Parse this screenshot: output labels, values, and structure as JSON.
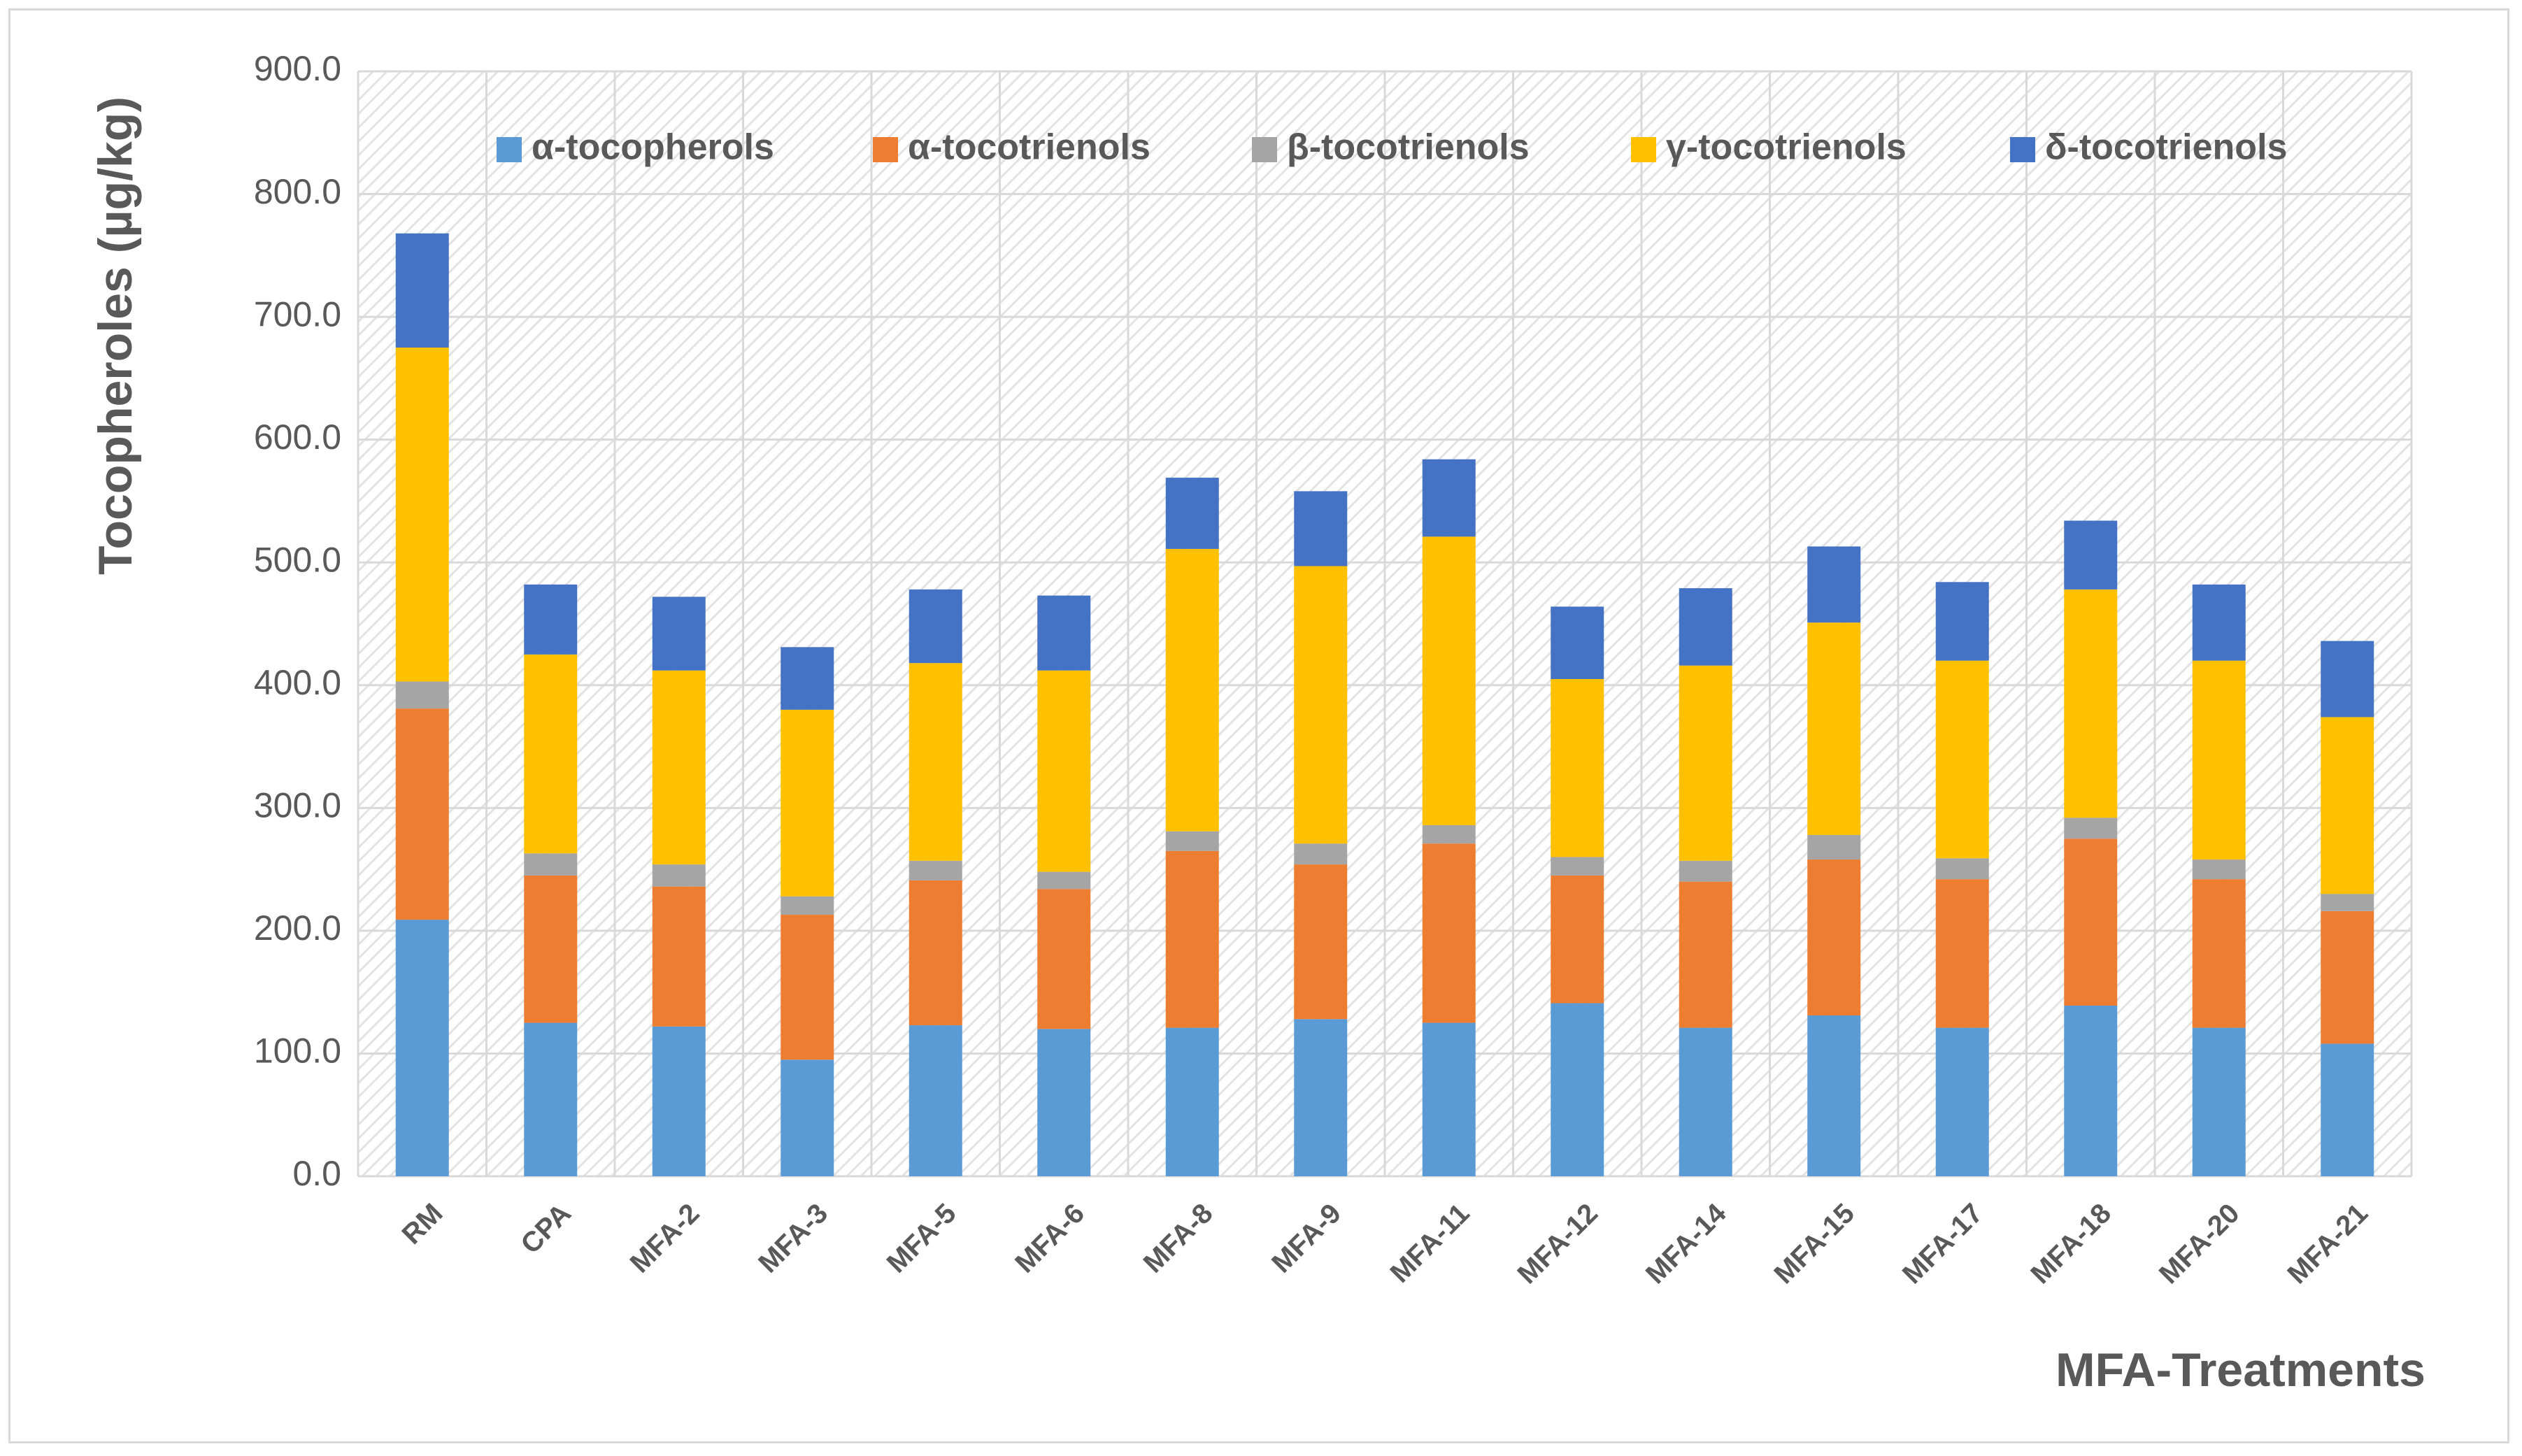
{
  "chart_data": {
    "type": "bar",
    "stacked": true,
    "title": "",
    "xlabel": "MFA-Treatments",
    "ylabel": "Tocopheroles (µg/kg)",
    "ylim": [
      0,
      900
    ],
    "y_ticks": [
      "0.0",
      "100.0",
      "200.0",
      "300.0",
      "400.0",
      "500.0",
      "600.0",
      "700.0",
      "800.0",
      "900.0"
    ],
    "grid": true,
    "legend_position": "top",
    "categories": [
      "RM",
      "CPA",
      "MFA-2",
      "MFA-3",
      "MFA-5",
      "MFA-6",
      "MFA-8",
      "MFA-9",
      "MFA-11",
      "MFA-12",
      "MFA-14",
      "MFA-15",
      "MFA-17",
      "MFA-18",
      "MFA-20",
      "MFA-21"
    ],
    "series": [
      {
        "name": "α-tocopherols",
        "color": "#5b9bd5",
        "values": [
          209,
          125,
          122,
          95,
          123,
          120,
          121,
          128,
          125,
          141,
          121,
          131,
          121,
          139,
          121,
          108
        ]
      },
      {
        "name": "α-tocotrienols",
        "color": "#ed7d31",
        "values": [
          172,
          120,
          114,
          118,
          118,
          114,
          144,
          126,
          146,
          104,
          119,
          127,
          121,
          136,
          121,
          108
        ]
      },
      {
        "name": "β-tocotrienols",
        "color": "#a5a5a5",
        "values": [
          22,
          18,
          18,
          15,
          16,
          14,
          16,
          17,
          15,
          15,
          17,
          20,
          17,
          17,
          16,
          14
        ]
      },
      {
        "name": "γ-tocotrienols",
        "color": "#ffc000",
        "values": [
          272,
          162,
          158,
          152,
          161,
          164,
          230,
          226,
          235,
          145,
          159,
          173,
          161,
          186,
          162,
          144
        ]
      },
      {
        "name": "δ-tocotrienols",
        "color": "#4472c4",
        "values": [
          93,
          57,
          60,
          51,
          60,
          61,
          58,
          61,
          63,
          59,
          63,
          62,
          64,
          56,
          62,
          62
        ]
      }
    ]
  }
}
